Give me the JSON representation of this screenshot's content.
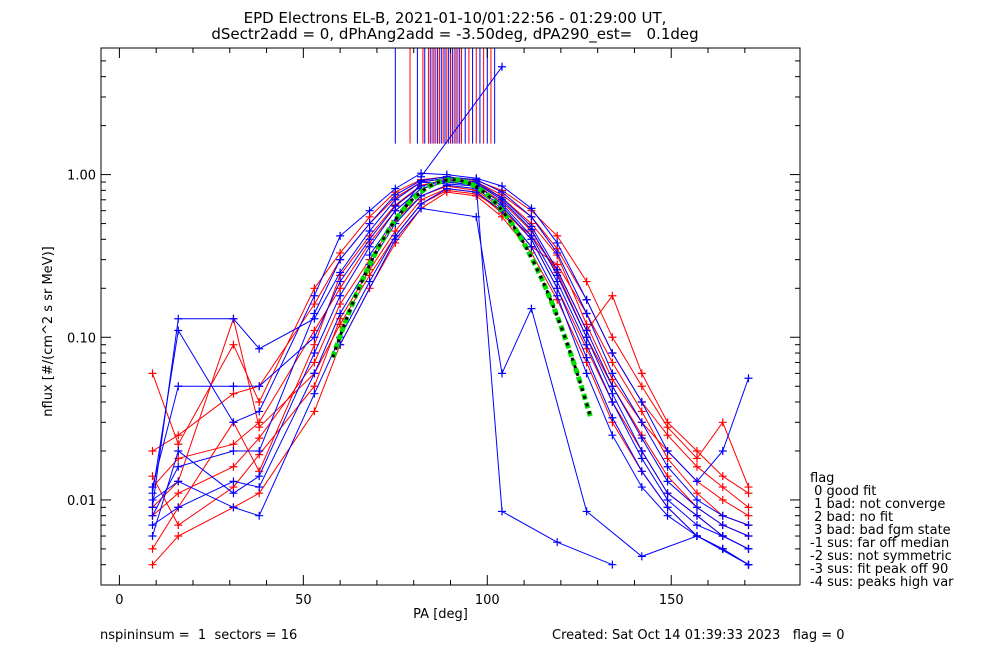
{
  "title_line1": "EPD Electrons EL-B, 2021-01-10/01:22:56 - 01:29:00 UT,",
  "title_line2": "dSectr2add = 0, dPhAng2add = -3.50deg, dPA290_est=   0.1deg",
  "legend": {
    "title": "flag",
    "items": [
      " 0 good fit",
      " 1 bad: not converge",
      " 2 bad: no fit",
      " 3 bad: bad fgm state",
      "-1 sus: far off median",
      "-2 sus: not symmetric",
      "-3 sus: fit peak off 90",
      "-4 sus: peaks high var"
    ]
  },
  "footer": {
    "left": "nspininsum =  1  sectors = 16",
    "right": "Created: Sat Oct 14 01:39:33 2023   flag = 0"
  },
  "colors": {
    "series_red": "#ff0000",
    "series_blue": "#0000ff",
    "fit_green": "#00dd00",
    "fit_black": "#000000"
  },
  "chart_data": {
    "type": "line",
    "xlabel": "PA [deg]",
    "ylabel": "nflux [#/(cm^2 s sr MeV)]",
    "xlim": [
      -5,
      185
    ],
    "ylim": [
      0.003,
      6
    ],
    "yscale": "log",
    "xticks": [
      0,
      50,
      100,
      150
    ],
    "xtick_labels": [
      "0",
      "50",
      "100",
      "150"
    ],
    "yticks": [
      0.01,
      0.1,
      1.0
    ],
    "ytick_labels": [
      "0.01",
      "0.10",
      "1.00"
    ],
    "grid": false,
    "markers": "+",
    "series": [
      {
        "color": "red",
        "x": [
          9,
          16,
          31,
          38,
          53,
          60,
          68,
          75,
          82,
          89,
          97,
          104,
          112,
          119,
          127,
          134,
          142,
          149,
          157,
          164,
          171
        ],
        "values": [
          0.012,
          0.018,
          0.022,
          0.03,
          0.11,
          0.2,
          0.38,
          0.6,
          0.82,
          0.9,
          0.86,
          0.68,
          0.45,
          0.25,
          0.1,
          0.05,
          0.025,
          0.014,
          0.009,
          0.007,
          0.006
        ]
      },
      {
        "color": "red",
        "x": [
          9,
          16,
          31,
          38,
          53,
          60,
          68,
          75,
          82,
          89,
          97,
          104,
          112,
          119,
          127,
          134,
          142,
          149,
          157,
          164,
          171
        ],
        "values": [
          0.008,
          0.011,
          0.016,
          0.024,
          0.07,
          0.16,
          0.3,
          0.52,
          0.74,
          0.85,
          0.8,
          0.62,
          0.4,
          0.2,
          0.085,
          0.04,
          0.02,
          0.011,
          0.008,
          0.006,
          0.005
        ]
      },
      {
        "color": "red",
        "x": [
          9,
          16,
          31,
          38,
          53,
          60,
          68,
          75,
          82,
          89,
          97,
          104,
          112,
          119,
          127,
          134,
          142,
          149,
          157,
          164,
          171
        ],
        "values": [
          0.014,
          0.007,
          0.012,
          0.019,
          0.05,
          0.13,
          0.26,
          0.45,
          0.7,
          0.82,
          0.78,
          0.58,
          0.36,
          0.28,
          0.14,
          0.07,
          0.035,
          0.018,
          0.011,
          0.008,
          0.007
        ]
      },
      {
        "color": "red",
        "x": [
          9,
          16,
          31,
          38,
          53,
          60,
          68,
          75,
          82,
          89,
          97,
          104,
          112,
          119,
          127,
          134,
          142,
          149,
          157,
          164,
          171
        ],
        "values": [
          0.005,
          0.009,
          0.03,
          0.015,
          0.09,
          0.24,
          0.42,
          0.65,
          0.86,
          0.93,
          0.88,
          0.72,
          0.5,
          0.32,
          0.12,
          0.055,
          0.03,
          0.02,
          0.013,
          0.01,
          0.008
        ]
      },
      {
        "color": "red",
        "x": [
          9,
          16,
          31,
          38,
          53,
          60,
          68,
          75,
          82,
          89,
          97,
          104,
          112,
          119,
          127,
          134,
          142,
          149,
          157,
          164,
          171
        ],
        "values": [
          0.02,
          0.025,
          0.045,
          0.05,
          0.16,
          0.3,
          0.5,
          0.72,
          0.9,
          0.95,
          0.9,
          0.75,
          0.55,
          0.35,
          0.17,
          0.08,
          0.04,
          0.025,
          0.016,
          0.012,
          0.009
        ]
      },
      {
        "color": "red",
        "x": [
          9,
          16,
          31,
          38,
          53,
          60,
          68,
          75,
          82,
          89,
          97,
          104,
          112,
          119,
          127,
          134,
          142,
          149,
          157,
          164,
          171
        ],
        "values": [
          0.004,
          0.006,
          0.009,
          0.011,
          0.035,
          0.09,
          0.2,
          0.38,
          0.62,
          0.78,
          0.74,
          0.55,
          0.33,
          0.17,
          0.07,
          0.03,
          0.015,
          0.009,
          0.006,
          0.005,
          0.004
        ]
      },
      {
        "color": "red",
        "x": [
          9,
          16,
          31,
          38,
          53,
          60,
          68,
          75,
          82,
          89,
          97,
          104,
          112,
          119,
          127,
          134,
          142,
          149,
          157,
          164,
          171
        ],
        "values": [
          0.06,
          0.022,
          0.09,
          0.04,
          0.2,
          0.33,
          0.55,
          0.78,
          0.93,
          0.97,
          0.92,
          0.8,
          0.6,
          0.42,
          0.22,
          0.1,
          0.05,
          0.028,
          0.018,
          0.03,
          0.012
        ]
      },
      {
        "color": "red",
        "x": [
          9,
          16,
          31,
          38,
          53,
          60,
          68,
          75,
          82,
          89,
          97,
          104,
          112,
          119,
          127,
          134,
          142,
          149,
          157,
          164,
          171
        ],
        "values": [
          0.009,
          0.013,
          0.13,
          0.028,
          0.06,
          0.12,
          0.24,
          0.42,
          0.66,
          0.8,
          0.76,
          0.6,
          0.42,
          0.26,
          0.11,
          0.18,
          0.06,
          0.03,
          0.02,
          0.014,
          0.011
        ]
      },
      {
        "color": "blue",
        "x": [
          9,
          16,
          31,
          38,
          53,
          60,
          68,
          75,
          82,
          89,
          97,
          104,
          112,
          119,
          127,
          134,
          142,
          149,
          157,
          164,
          171
        ],
        "values": [
          0.009,
          0.13,
          0.13,
          0.085,
          0.13,
          0.25,
          0.45,
          0.7,
          0.9,
          0.95,
          0.9,
          0.72,
          0.48,
          0.26,
          0.11,
          0.05,
          0.024,
          0.013,
          0.009,
          0.007,
          0.006
        ]
      },
      {
        "color": "blue",
        "x": [
          9,
          16,
          31,
          38,
          53,
          60,
          68,
          75,
          82,
          89,
          97,
          104,
          112,
          119,
          127,
          134,
          142,
          149,
          157,
          164,
          171
        ],
        "values": [
          0.012,
          0.05,
          0.05,
          0.05,
          0.1,
          0.22,
          0.4,
          0.64,
          0.85,
          0.92,
          0.88,
          0.7,
          0.46,
          0.24,
          0.1,
          0.045,
          0.02,
          0.011,
          0.008,
          0.006,
          0.005
        ]
      },
      {
        "color": "blue",
        "x": [
          9,
          16,
          31,
          38,
          53,
          60,
          68,
          75,
          82,
          89,
          97,
          104,
          112,
          119,
          127,
          134,
          142,
          149,
          157,
          164,
          171
        ],
        "values": [
          0.006,
          0.02,
          0.011,
          0.014,
          0.08,
          0.18,
          0.36,
          0.6,
          0.82,
          0.9,
          0.86,
          0.66,
          0.42,
          0.22,
          0.09,
          0.04,
          0.018,
          0.01,
          0.007,
          0.006,
          0.005
        ]
      },
      {
        "color": "blue",
        "x": [
          9,
          16,
          31,
          38,
          53,
          60,
          68,
          75,
          82,
          89,
          97,
          104,
          112,
          119,
          127,
          134,
          142,
          149,
          157,
          164,
          171
        ],
        "values": [
          0.008,
          0.016,
          0.02,
          0.02,
          0.14,
          0.3,
          0.5,
          0.75,
          0.92,
          0.97,
          0.93,
          0.78,
          0.55,
          0.33,
          0.14,
          0.06,
          0.03,
          0.016,
          0.01,
          0.008,
          0.007
        ]
      },
      {
        "color": "blue",
        "x": [
          9,
          16,
          31,
          38,
          53,
          60,
          68,
          75,
          82,
          89,
          97,
          104,
          112,
          119,
          127,
          134,
          142,
          149,
          157,
          164,
          171
        ],
        "values": [
          0.007,
          0.009,
          0.013,
          0.012,
          0.06,
          0.14,
          0.28,
          0.5,
          0.74,
          0.86,
          0.82,
          0.64,
          0.4,
          0.2,
          0.075,
          0.032,
          0.015,
          0.009,
          0.006,
          0.005,
          0.004
        ]
      },
      {
        "color": "blue",
        "x": [
          9,
          16,
          31,
          38,
          53,
          60,
          68,
          75,
          82,
          89,
          97,
          104,
          112,
          119,
          127,
          134,
          142,
          149,
          157,
          164,
          171
        ],
        "values": [
          0.011,
          0.11,
          0.03,
          0.035,
          0.18,
          0.42,
          0.6,
          0.82,
          1.02,
          1.0,
          0.95,
          0.85,
          0.62,
          0.38,
          0.17,
          0.08,
          0.04,
          0.02,
          0.013,
          0.02,
          0.056
        ]
      },
      {
        "color": "blue",
        "x": [
          9,
          16,
          31,
          38,
          53,
          60,
          68,
          75,
          82,
          89,
          97,
          104,
          112,
          119,
          127,
          134,
          142,
          149,
          157,
          164,
          171
        ],
        "values": [
          0.01,
          0.013,
          0.009,
          0.008,
          0.045,
          0.1,
          0.22,
          0.42,
          0.66,
          0.82,
          0.78,
          0.6,
          0.36,
          0.18,
          0.06,
          0.025,
          0.012,
          0.008,
          0.006,
          0.005,
          0.004
        ]
      },
      {
        "color": "blue",
        "x": [
          60,
          75,
          82,
          97,
          104,
          112,
          127,
          142,
          157,
          171
        ],
        "values": [
          0.09,
          0.4,
          0.62,
          0.55,
          0.06,
          0.15,
          0.0085,
          0.0045,
          0.006,
          0.004
        ]
      },
      {
        "color": "blue",
        "x": [
          68,
          82,
          97,
          104,
          119,
          134
        ],
        "values": [
          0.32,
          0.9,
          0.85,
          0.0085,
          0.0055,
          0.004
        ]
      },
      {
        "color": "blue",
        "x": [
          82,
          104
        ],
        "values": [
          0.97,
          4.6
        ]
      }
    ],
    "fit_curve": {
      "peak": 0.93,
      "center_deg": 90.5,
      "label_colors": [
        "green",
        "black"
      ]
    },
    "saturated_spikes": {
      "color_mix": [
        "blue",
        "red"
      ],
      "x": [
        75,
        79,
        81,
        82.5,
        83,
        84,
        84.5,
        85,
        85.5,
        86,
        86.5,
        87,
        87.5,
        88,
        88.5,
        89,
        89.5,
        90,
        90.5,
        91,
        91.5,
        92,
        92.5,
        93,
        94,
        95,
        96,
        97,
        98,
        99,
        100,
        101,
        102
      ],
      "colors": [
        "blue",
        "red",
        "blue",
        "red",
        "blue",
        "red",
        "blue",
        "red",
        "blue",
        "red",
        "blue",
        "red",
        "blue",
        "red",
        "blue",
        "red",
        "blue",
        "red",
        "blue",
        "red",
        "blue",
        "red",
        "blue",
        "red",
        "blue",
        "red",
        "blue",
        "red",
        "blue",
        "red",
        "blue",
        "red",
        "blue"
      ]
    }
  }
}
